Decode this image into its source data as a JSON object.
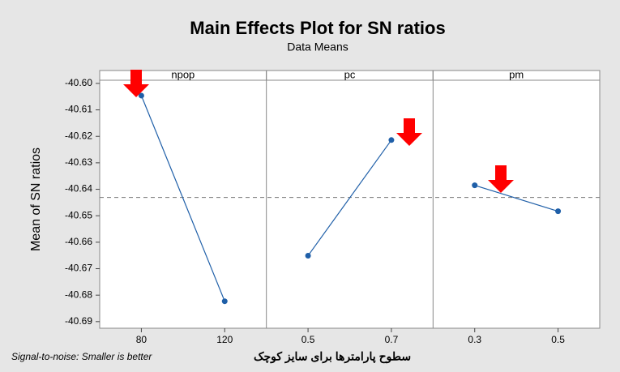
{
  "chart_data": {
    "type": "line",
    "title": "Main Effects Plot for SN ratios",
    "subtitle": "Data Means",
    "ylabel": "Mean of SN ratios",
    "xlabel": "سطوح پارامترها برای سایز کوچک",
    "footnote": "Signal-to-noise: Smaller is better",
    "color": "#1f5fa8",
    "ylim": [
      -40.6925,
      -40.5988
    ],
    "yticks": [
      {
        "value": -40.6,
        "label": "-40.60"
      },
      -40.61,
      -40.62,
      -40.63,
      -40.64,
      -40.65,
      -40.66,
      -40.67,
      -40.68,
      -40.69
    ],
    "reference": -40.6431,
    "panels": [
      {
        "name": "npop",
        "categories": [
          "80",
          "120"
        ],
        "values": [
          -40.6046,
          -40.6823
        ]
      },
      {
        "name": "pc",
        "categories": [
          "0.5",
          "0.7"
        ],
        "values": [
          -40.6651,
          -40.6214
        ]
      },
      {
        "name": "pm",
        "categories": [
          "0.3",
          "0.5"
        ],
        "values": [
          -40.6385,
          -40.6483
        ]
      }
    ]
  }
}
